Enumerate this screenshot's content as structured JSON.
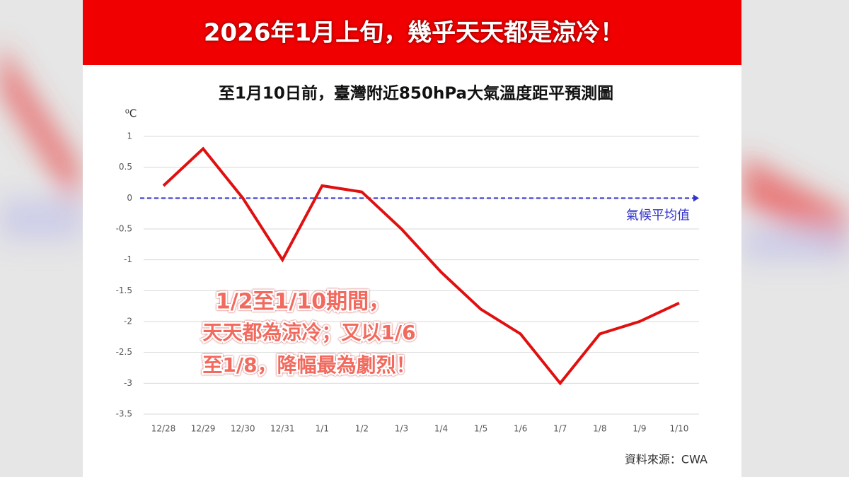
{
  "header": {
    "title": "2026年1月上旬，幾乎天天都是涼冷！"
  },
  "chart_data": {
    "type": "line",
    "title": "至1月10日前，臺灣附近850hPa大氣溫度距平預測圖",
    "y_label": "⁰C",
    "categories": [
      "12/28",
      "12/29",
      "12/30",
      "12/31",
      "1/1",
      "1/2",
      "1/3",
      "1/4",
      "1/5",
      "1/6",
      "1/7",
      "1/8",
      "1/9",
      "1/10"
    ],
    "values": [
      0.2,
      0.8,
      0,
      -1,
      0.2,
      0.1,
      -0.5,
      -1.2,
      -1.8,
      -2.2,
      -3,
      -2.2,
      -2,
      -1.7
    ],
    "color": "#e01010",
    "ylim": [
      -3.5,
      1
    ],
    "yticks": [
      1,
      0.5,
      0,
      -0.5,
      -1,
      -1.5,
      -2,
      -2.5,
      -3,
      -3.5
    ],
    "grid": true,
    "reference_line": {
      "value": 0,
      "label": "氣候平均值",
      "color": "#3333cc"
    },
    "annotation": [
      "1/2至1/10期間，",
      "天天都為涼冷；又以1/6",
      "至1/8，降幅最為劇烈！"
    ]
  },
  "footer": {
    "source": "資料來源：CWA"
  }
}
